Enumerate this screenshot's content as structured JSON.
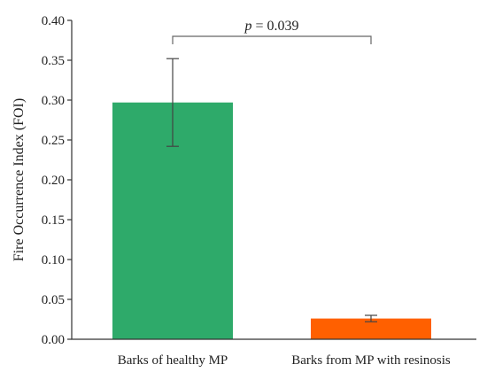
{
  "chart_data": {
    "type": "bar",
    "categories": [
      "Barks of healthy MP",
      "Barks from MP with resinosis"
    ],
    "values": [
      0.297,
      0.026
    ],
    "errors": [
      0.055,
      0.004
    ],
    "colors": [
      "#2eaa6a",
      "#ff6000"
    ],
    "ylabel": "Fire Occurrence Index (FOI)",
    "xlabel": "",
    "title": "",
    "ylim": [
      0,
      0.4
    ],
    "yticks": [
      "0.00",
      "0.05",
      "0.10",
      "0.15",
      "0.20",
      "0.25",
      "0.30",
      "0.35",
      "0.40"
    ],
    "grid": false,
    "legend": "none",
    "annotation": {
      "p_symbol": "p",
      "p_value_text": " = 0.039",
      "bracket_height": 0.38
    }
  }
}
